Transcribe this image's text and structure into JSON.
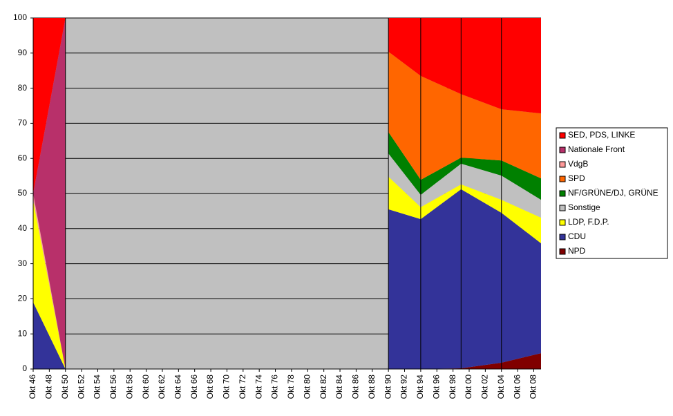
{
  "chart_data": {
    "type": "stacked_area",
    "xticks": [
      {
        "value": 1946,
        "label": "Okt 46"
      },
      {
        "value": 1948,
        "label": "Okt 48"
      },
      {
        "value": 1950,
        "label": "Okt 50"
      },
      {
        "value": 1952,
        "label": "Okt 52"
      },
      {
        "value": 1954,
        "label": "Okt 54"
      },
      {
        "value": 1956,
        "label": "Okt 56"
      },
      {
        "value": 1958,
        "label": "Okt 58"
      },
      {
        "value": 1960,
        "label": "Okt 60"
      },
      {
        "value": 1962,
        "label": "Okt 62"
      },
      {
        "value": 1964,
        "label": "Okt 64"
      },
      {
        "value": 1966,
        "label": "Okt 66"
      },
      {
        "value": 1968,
        "label": "Okt 68"
      },
      {
        "value": 1970,
        "label": "Okt 70"
      },
      {
        "value": 1972,
        "label": "Okt 72"
      },
      {
        "value": 1974,
        "label": "Okt 74"
      },
      {
        "value": 1976,
        "label": "Okt 76"
      },
      {
        "value": 1978,
        "label": "Okt 78"
      },
      {
        "value": 1980,
        "label": "Okt 80"
      },
      {
        "value": 1982,
        "label": "Okt 82"
      },
      {
        "value": 1984,
        "label": "Okt 84"
      },
      {
        "value": 1986,
        "label": "Okt 86"
      },
      {
        "value": 1988,
        "label": "Okt 88"
      },
      {
        "value": 1990,
        "label": "Okt 90"
      },
      {
        "value": 1992,
        "label": "Okt 92"
      },
      {
        "value": 1994,
        "label": "Okt 94"
      },
      {
        "value": 1996,
        "label": "Okt 96"
      },
      {
        "value": 1998,
        "label": "Okt 98"
      },
      {
        "value": 2000,
        "label": "Okt 00"
      },
      {
        "value": 2002,
        "label": "Okt 02"
      },
      {
        "value": 2004,
        "label": "Okt 04"
      },
      {
        "value": 2006,
        "label": "Okt 06"
      },
      {
        "value": 2008,
        "label": "Okt 08"
      }
    ],
    "xlim": [
      1946,
      2008.9
    ],
    "x": [
      1946,
      1950,
      1970,
      1990,
      1994,
      1999,
      2004,
      2008.9
    ],
    "ylim": [
      0,
      100
    ],
    "yticks": [
      0,
      10,
      20,
      30,
      40,
      50,
      60,
      70,
      80,
      90,
      100
    ],
    "grid": true,
    "legend": "right",
    "series": [
      {
        "name": "NPD",
        "color": "#800000",
        "values": [
          0,
          0,
          null,
          0,
          0,
          0.2,
          1.8,
          4.5
        ]
      },
      {
        "name": "CDU",
        "color": "#333399",
        "values": [
          19,
          0,
          null,
          45.5,
          42.7,
          51,
          42.7,
          31.3
        ]
      },
      {
        "name": "LDP, F.D.P.",
        "color": "#ffff00",
        "values": [
          29,
          0,
          null,
          9.3,
          3.4,
          1.4,
          3.7,
          7.3
        ]
      },
      {
        "name": "Sonstige",
        "color": "#c0c0c0",
        "values": [
          0.3,
          0,
          null,
          6.6,
          3.5,
          5.9,
          6.9,
          5.1
        ]
      },
      {
        "name": "NF/GRÜNE/DJ, GRÜNE",
        "color": "#008000",
        "values": [
          0,
          0,
          null,
          6.1,
          4.3,
          1.7,
          4.3,
          6.1
        ]
      },
      {
        "name": "SPD",
        "color": "#ff6600",
        "values": [
          0,
          0,
          null,
          22.9,
          29.6,
          18.1,
          14.6,
          18.5
        ]
      },
      {
        "name": "VdgB",
        "color": "#ff9999",
        "values": [
          1.7,
          0,
          null,
          0,
          0,
          0,
          0,
          0
        ]
      },
      {
        "name": "Nationale Front",
        "color": "#b8306a",
        "values": [
          0,
          100,
          null,
          0,
          0,
          0,
          0,
          0
        ]
      },
      {
        "name": "SED, PDS, LINKE",
        "color": "#ff0000",
        "values": [
          50,
          0,
          null,
          9.6,
          16.5,
          21.7,
          26,
          27.2
        ]
      }
    ]
  }
}
